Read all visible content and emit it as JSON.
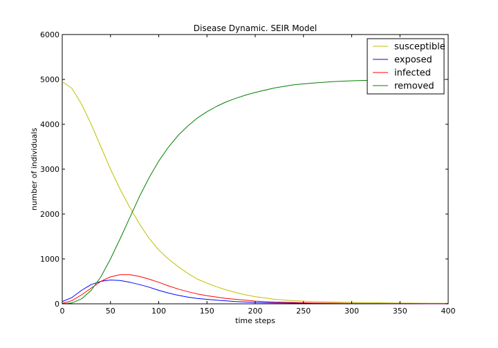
{
  "chart_data": {
    "type": "line",
    "title": "Disease Dynamic. SEIR Model",
    "xlabel": "time steps",
    "ylabel": "number of individuals",
    "xlim": [
      0,
      400
    ],
    "ylim": [
      0,
      6000
    ],
    "xticks": [
      "0",
      "50",
      "100",
      "150",
      "200",
      "250",
      "300",
      "350",
      "400"
    ],
    "yticks": [
      "0",
      "1000",
      "2000",
      "3000",
      "4000",
      "5000",
      "6000"
    ],
    "grid": false,
    "legend_position": "top-right",
    "x": [
      0,
      10,
      20,
      30,
      40,
      50,
      60,
      70,
      80,
      90,
      100,
      110,
      120,
      130,
      140,
      150,
      160,
      170,
      180,
      190,
      200,
      220,
      240,
      260,
      280,
      300,
      320,
      340,
      360,
      380,
      400
    ],
    "series": [
      {
        "name": "susceptible",
        "color": "#bfbf00",
        "values": [
          4950,
          4800,
          4450,
          4000,
          3500,
          3000,
          2550,
          2150,
          1780,
          1460,
          1200,
          1000,
          830,
          680,
          550,
          460,
          380,
          310,
          250,
          200,
          160,
          100,
          70,
          50,
          40,
          30,
          25,
          20,
          15,
          12,
          10
        ]
      },
      {
        "name": "exposed",
        "color": "#0000ff",
        "values": [
          50,
          140,
          300,
          430,
          500,
          530,
          520,
          480,
          430,
          370,
          300,
          240,
          190,
          150,
          120,
          100,
          80,
          65,
          50,
          40,
          30,
          20,
          15,
          10,
          8,
          6,
          5,
          4,
          3,
          2,
          2
        ]
      },
      {
        "name": "infected",
        "color": "#ff0000",
        "values": [
          10,
          70,
          200,
          350,
          500,
          600,
          650,
          650,
          610,
          550,
          480,
          400,
          330,
          270,
          220,
          180,
          150,
          120,
          100,
          80,
          60,
          40,
          30,
          20,
          15,
          10,
          8,
          6,
          5,
          4,
          3
        ]
      },
      {
        "name": "removed",
        "color": "#008000",
        "values": [
          0,
          20,
          110,
          300,
          600,
          1000,
          1450,
          1920,
          2390,
          2810,
          3180,
          3490,
          3750,
          3960,
          4140,
          4280,
          4400,
          4500,
          4580,
          4650,
          4710,
          4810,
          4880,
          4920,
          4950,
          4970,
          4980,
          4990,
          4990,
          4995,
          5000
        ]
      }
    ]
  }
}
